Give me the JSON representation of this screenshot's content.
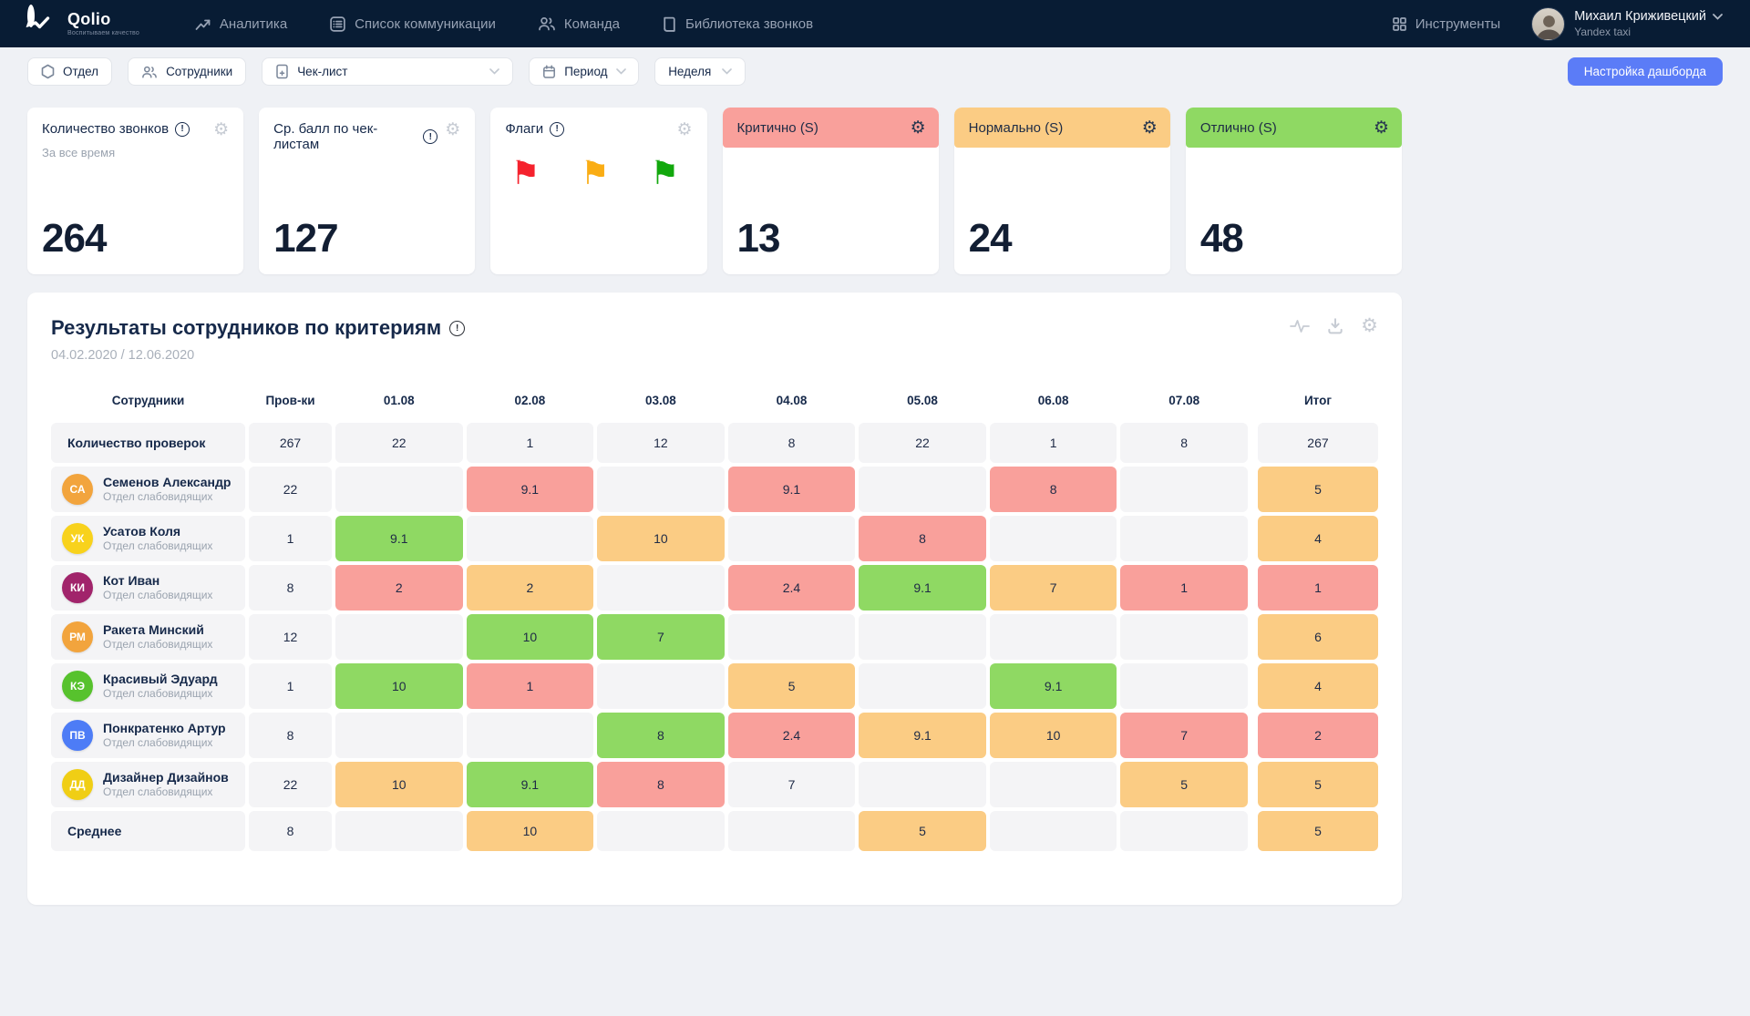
{
  "theme": {
    "nav_bg": "#081C34",
    "accent_blue": "#5B7CF7",
    "cell_red": "#F9A09B",
    "cell_orange": "#FBCC84",
    "cell_green": "#8FD963",
    "cell_plain": "#F4F4F6",
    "text_dark": "#16294A"
  },
  "nav": {
    "brand": "Qolio",
    "tagline": "Воспитываем качество",
    "items": [
      {
        "label": "Аналитика"
      },
      {
        "label": "Список коммуникации"
      },
      {
        "label": "Команда"
      },
      {
        "label": "Библиотека звонков"
      }
    ],
    "tools_label": "Инструменты",
    "user": {
      "name": "Михаил Криживецкий",
      "company": "Yandex taxi"
    }
  },
  "filters": {
    "department": "Отдел",
    "employees": "Сотрудники",
    "checklist": "Чек-лист",
    "period": "Период",
    "week": "Неделя",
    "dashboard_settings": "Настройка дашборда"
  },
  "cards": [
    {
      "type": "simple",
      "title": "Количество звонков",
      "subtitle": "За все время",
      "value": "264"
    },
    {
      "type": "simple",
      "title": "Ср. балл по чек-листам",
      "subtitle": "",
      "value": "127"
    },
    {
      "type": "flags",
      "title": "Флаги",
      "flags": [
        {
          "name": "red-flag",
          "color": "#F5222D"
        },
        {
          "name": "orange-flag",
          "color": "#FAAD14"
        },
        {
          "name": "green-flag",
          "color": "#12A80D"
        }
      ]
    },
    {
      "type": "colored",
      "title": "Критично (S)",
      "value": "13",
      "band_color": "#F9A09B"
    },
    {
      "type": "colored",
      "title": "Нормально (S)",
      "value": "24",
      "band_color": "#FBCC84"
    },
    {
      "type": "colored",
      "title": "Отлично (S)",
      "value": "48",
      "band_color": "#8FD963"
    }
  ],
  "panel": {
    "title": "Результаты сотрудников по критериям",
    "date_range": "04.02.2020 / 12.06.2020",
    "columns": [
      "Сотрудники",
      "Пров-ки",
      "01.08",
      "02.08",
      "03.08",
      "04.08",
      "05.08",
      "06.08",
      "07.08",
      "Итог"
    ],
    "rows": [
      {
        "kind": "summary",
        "label": "Количество проверок",
        "checks": "267",
        "cells": [
          {
            "v": "22"
          },
          {
            "v": "1"
          },
          {
            "v": "12"
          },
          {
            "v": "8"
          },
          {
            "v": "22"
          },
          {
            "v": "1"
          },
          {
            "v": "8"
          }
        ],
        "total": {
          "v": "267"
        }
      },
      {
        "kind": "employee",
        "name": "Семенов Александр",
        "dept": "Отдел слабовидящих",
        "initials": "СА",
        "avatar_color": "#F2A43D",
        "checks": "22",
        "cells": [
          {},
          {
            "v": "9.1",
            "c": "red"
          },
          {},
          {
            "v": "9.1",
            "c": "red"
          },
          {},
          {
            "v": "8",
            "c": "red"
          },
          {}
        ],
        "total": {
          "v": "5",
          "c": "orange"
        }
      },
      {
        "kind": "employee",
        "name": "Усатов Коля",
        "dept": "Отдел слабовидящих",
        "initials": "УК",
        "avatar_color": "#F8D21C",
        "checks": "1",
        "cells": [
          {
            "v": "9.1",
            "c": "green"
          },
          {},
          {
            "v": "10",
            "c": "orange"
          },
          {},
          {
            "v": "8",
            "c": "red"
          },
          {},
          {}
        ],
        "total": {
          "v": "4",
          "c": "orange"
        }
      },
      {
        "kind": "employee",
        "name": "Кот Иван",
        "dept": "Отдел слабовидящих",
        "initials": "КИ",
        "avatar_color": "#A1246B",
        "checks": "8",
        "cells": [
          {
            "v": "2",
            "c": "red"
          },
          {
            "v": "2",
            "c": "orange"
          },
          {},
          {
            "v": "2.4",
            "c": "red"
          },
          {
            "v": "9.1",
            "c": "green"
          },
          {
            "v": "7",
            "c": "orange"
          },
          {
            "v": "1",
            "c": "red"
          }
        ],
        "total": {
          "v": "1",
          "c": "red"
        }
      },
      {
        "kind": "employee",
        "name": "Ракета Минский",
        "dept": "Отдел слабовидящих",
        "initials": "РМ",
        "avatar_color": "#F2A43D",
        "checks": "12",
        "cells": [
          {},
          {
            "v": "10",
            "c": "green"
          },
          {
            "v": "7",
            "c": "green"
          },
          {},
          {},
          {},
          {}
        ],
        "total": {
          "v": "6",
          "c": "orange"
        }
      },
      {
        "kind": "employee",
        "name": "Красивый Эдуард",
        "dept": "Отдел слабовидящих",
        "initials": "КЭ",
        "avatar_color": "#57C22D",
        "checks": "1",
        "cells": [
          {
            "v": "10",
            "c": "green"
          },
          {
            "v": "1",
            "c": "red"
          },
          {},
          {
            "v": "5",
            "c": "orange"
          },
          {},
          {
            "v": "9.1",
            "c": "green"
          },
          {}
        ],
        "total": {
          "v": "4",
          "c": "orange"
        }
      },
      {
        "kind": "employee",
        "name": "Понкратенко Артур",
        "dept": "Отдел слабовидящих",
        "initials": "ПВ",
        "avatar_color": "#4D7CF6",
        "checks": "8",
        "cells": [
          {},
          {},
          {
            "v": "8",
            "c": "green"
          },
          {
            "v": "2.4",
            "c": "red"
          },
          {
            "v": "9.1",
            "c": "orange"
          },
          {
            "v": "10",
            "c": "orange"
          },
          {
            "v": "7",
            "c": "red"
          }
        ],
        "total": {
          "v": "2",
          "c": "red"
        }
      },
      {
        "kind": "employee",
        "name": "Дизайнер Дизайнов",
        "dept": "Отдел слабовидящих",
        "initials": "ДД",
        "avatar_color": "#F0CE15",
        "checks": "22",
        "cells": [
          {
            "v": "10",
            "c": "orange"
          },
          {
            "v": "9.1",
            "c": "green"
          },
          {
            "v": "8",
            "c": "red"
          },
          {
            "v": "7"
          },
          {},
          {},
          {
            "v": "5",
            "c": "orange"
          }
        ],
        "total": {
          "v": "5",
          "c": "orange"
        }
      },
      {
        "kind": "summary",
        "label": "Среднее",
        "checks": "8",
        "cells": [
          {},
          {
            "v": "10",
            "c": "orange"
          },
          {},
          {},
          {
            "v": "5",
            "c": "orange"
          },
          {},
          {}
        ],
        "total": {
          "v": "5",
          "c": "orange"
        }
      }
    ]
  }
}
